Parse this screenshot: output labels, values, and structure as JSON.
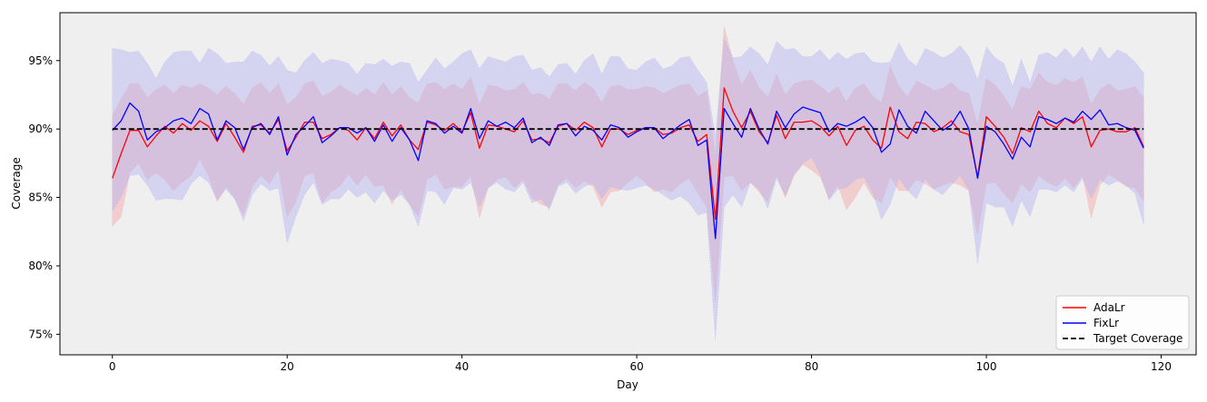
{
  "chart_data": {
    "type": "line",
    "xlabel": "Day",
    "ylabel": "Coverage",
    "xlim": [
      -6,
      124
    ],
    "ylim": [
      73.5,
      98.5
    ],
    "x_ticks": [
      0,
      20,
      40,
      60,
      80,
      100,
      120
    ],
    "y_ticks": [
      75,
      80,
      85,
      90,
      95
    ],
    "y_tick_labels": [
      "75%",
      "80%",
      "85%",
      "90%",
      "95%"
    ],
    "grid": false,
    "background": "#efefef",
    "legend_position": "bottom-right",
    "target_coverage": 90,
    "series": [
      {
        "name": "AdaLr",
        "color": "#ff0000",
        "band_color": "#f4a3a3",
        "values": [
          86.4,
          88.2,
          89.9,
          89.9,
          88.7,
          89.5,
          90.2,
          89.7,
          90.4,
          89.9,
          90.6,
          90.2,
          89.1,
          90.4,
          89.4,
          88.3,
          90.2,
          90.3,
          89.7,
          90.7,
          88.4,
          89.4,
          90.5,
          90.5,
          89.3,
          89.6,
          90.1,
          89.9,
          89.2,
          90.1,
          89.3,
          90.5,
          89.5,
          90.3,
          89.2,
          88.5,
          90.5,
          90.3,
          89.9,
          90.4,
          89.8,
          91.2,
          88.6,
          90.3,
          90.2,
          90.0,
          89.8,
          90.6,
          89.2,
          89.3,
          89.0,
          90.2,
          90.4,
          89.9,
          90.5,
          90.1,
          88.7,
          90.0,
          90.0,
          89.6,
          89.9,
          90.1,
          90.1,
          89.6,
          89.7,
          90.1,
          90.3,
          89.1,
          89.6,
          83.4,
          93.0,
          91.3,
          90.1,
          91.3,
          89.8,
          89.0,
          91.0,
          89.3,
          90.5,
          90.5,
          90.6,
          90.2,
          89.5,
          90.2,
          88.8,
          89.9,
          90.2,
          89.2,
          88.6,
          91.6,
          89.8,
          89.3,
          90.5,
          90.4,
          89.8,
          90.1,
          90.6,
          89.8,
          89.6,
          86.5,
          90.9,
          90.2,
          89.4,
          88.2,
          90.1,
          89.8,
          91.3,
          90.4,
          90.1,
          90.8,
          90.4,
          90.9,
          88.7,
          89.9,
          90.0,
          89.8,
          89.8,
          90.1,
          88.7
        ],
        "lower": [
          82.9,
          83.6,
          86.8,
          87.5,
          86.3,
          86.8,
          86.3,
          85.5,
          86.1,
          86.6,
          87.8,
          86.6,
          84.7,
          85.8,
          84.9,
          83.7,
          85.8,
          86.6,
          86.0,
          87.1,
          83.6,
          84.7,
          86.6,
          86.8,
          84.6,
          85.4,
          85.8,
          86.7,
          85.9,
          86.7,
          85.8,
          85.9,
          84.5,
          85.6,
          84.5,
          83.6,
          86.3,
          86.7,
          85.6,
          85.8,
          85.8,
          86.6,
          83.5,
          85.7,
          86.3,
          86.5,
          85.7,
          86.3,
          85.0,
          84.5,
          84.3,
          85.9,
          86.4,
          85.7,
          86.2,
          85.8,
          84.3,
          85.4,
          85.5,
          86.1,
          86.6,
          86.1,
          85.4,
          85.6,
          85.4,
          86.0,
          86.4,
          85.3,
          84.3,
          77.3,
          86.5,
          86.6,
          85.5,
          86.1,
          85.4,
          84.7,
          86.6,
          85.0,
          86.6,
          87.4,
          87.0,
          86.5,
          84.9,
          85.9,
          84.1,
          85.0,
          86.1,
          85.0,
          84.6,
          86.5,
          85.5,
          85.5,
          86.3,
          86.0,
          85.6,
          85.9,
          86.1,
          85.9,
          85.5,
          82.3,
          86.0,
          86.1,
          85.3,
          84.6,
          86.0,
          85.4,
          86.6,
          86.1,
          85.8,
          86.4,
          85.7,
          86.6,
          83.5,
          85.9,
          86.7,
          86.3,
          85.8,
          85.7,
          84.7
        ],
        "upper": [
          91.0,
          92.2,
          93.3,
          93.3,
          92.3,
          92.9,
          93.2,
          92.6,
          93.2,
          93.0,
          93.3,
          93.0,
          92.5,
          93.1,
          92.6,
          91.8,
          93.0,
          93.4,
          92.6,
          93.3,
          91.8,
          92.3,
          93.3,
          93.5,
          92.4,
          92.7,
          93.2,
          92.8,
          92.4,
          93.0,
          92.5,
          93.4,
          92.5,
          93.1,
          92.3,
          91.9,
          93.3,
          93.4,
          92.9,
          93.3,
          92.9,
          93.8,
          91.8,
          93.2,
          93.1,
          92.8,
          92.9,
          93.4,
          92.5,
          92.6,
          92.2,
          93.3,
          93.3,
          92.8,
          93.4,
          93.0,
          91.9,
          93.1,
          93.2,
          92.9,
          92.9,
          93.1,
          93.0,
          92.6,
          92.9,
          93.2,
          93.3,
          92.4,
          92.8,
          88.1,
          97.5,
          95.0,
          93.2,
          94.3,
          93.0,
          92.3,
          94.0,
          92.5,
          93.3,
          93.5,
          93.6,
          93.1,
          92.6,
          93.1,
          92.0,
          93.0,
          93.3,
          92.4,
          91.9,
          94.6,
          93.1,
          92.4,
          93.5,
          93.2,
          92.8,
          93.0,
          93.4,
          92.8,
          92.6,
          90.3,
          93.7,
          93.2,
          92.4,
          91.4,
          93.1,
          92.9,
          94.1,
          93.4,
          93.2,
          93.7,
          93.4,
          93.8,
          91.8,
          92.9,
          93.3,
          92.8,
          92.9,
          93.1,
          92.3
        ]
      },
      {
        "name": "FixLr",
        "color": "#0000ff",
        "band_color": "#b4b4f2",
        "values": [
          89.9,
          90.6,
          91.9,
          91.3,
          89.2,
          89.8,
          90.1,
          90.6,
          90.8,
          90.4,
          91.5,
          91.1,
          89.2,
          90.6,
          90.1,
          88.5,
          90.1,
          90.4,
          89.6,
          90.9,
          88.1,
          89.6,
          90.2,
          90.9,
          89.0,
          89.5,
          90.1,
          90.1,
          89.7,
          90.1,
          89.1,
          90.3,
          89.1,
          90.1,
          89.2,
          87.7,
          90.6,
          90.4,
          89.7,
          90.2,
          89.7,
          91.5,
          89.3,
          90.6,
          90.2,
          90.5,
          90.1,
          90.8,
          89.0,
          89.4,
          88.8,
          90.3,
          90.4,
          89.5,
          90.2,
          89.9,
          89.2,
          90.3,
          90.1,
          89.4,
          89.8,
          90.1,
          90.1,
          89.3,
          89.8,
          90.3,
          90.7,
          88.8,
          89.2,
          82.0,
          91.5,
          90.4,
          89.4,
          91.5,
          90.0,
          88.9,
          91.3,
          90.1,
          91.1,
          91.6,
          91.4,
          91.2,
          89.8,
          90.4,
          90.2,
          90.5,
          90.9,
          90.1,
          88.3,
          88.9,
          91.4,
          90.2,
          89.7,
          91.3,
          90.6,
          89.9,
          90.3,
          91.3,
          90.0,
          86.4,
          90.2,
          89.8,
          88.9,
          87.8,
          89.4,
          88.7,
          90.9,
          90.7,
          90.4,
          90.8,
          90.5,
          91.3,
          90.7,
          91.4,
          90.3,
          90.4,
          90.1,
          89.9,
          88.6
        ],
        "lower": [
          84.0,
          85.0,
          86.6,
          86.7,
          85.9,
          84.8,
          84.9,
          84.9,
          84.8,
          86.0,
          86.6,
          86.1,
          84.8,
          85.6,
          84.9,
          83.3,
          85.2,
          86.0,
          85.5,
          85.7,
          81.7,
          83.6,
          85.2,
          86.1,
          84.5,
          84.9,
          84.9,
          85.6,
          85.0,
          85.4,
          84.6,
          85.5,
          84.8,
          85.2,
          84.5,
          82.9,
          85.5,
          85.4,
          84.5,
          85.7,
          85.6,
          86.1,
          84.3,
          85.7,
          86.1,
          85.6,
          85.4,
          86.1,
          84.6,
          84.9,
          84.1,
          85.8,
          86.1,
          85.3,
          85.8,
          86.0,
          84.9,
          85.8,
          85.6,
          85.5,
          85.7,
          85.9,
          85.6,
          85.2,
          84.8,
          85.1,
          84.6,
          83.7,
          83.9,
          74.6,
          84.3,
          85.2,
          84.3,
          86.1,
          85.6,
          84.2,
          86.4,
          85.1,
          86.7,
          87.5,
          87.9,
          86.7,
          84.8,
          85.6,
          85.7,
          86.3,
          86.5,
          85.3,
          83.4,
          84.5,
          86.4,
          85.5,
          84.9,
          86.3,
          85.6,
          85.2,
          85.9,
          86.6,
          85.5,
          80.2,
          84.6,
          84.3,
          84.3,
          82.9,
          84.8,
          83.6,
          85.6,
          85.6,
          85.4,
          85.9,
          85.4,
          86.4,
          84.9,
          86.3,
          85.9,
          86.2,
          85.9,
          85.3,
          83.0
        ],
        "upper": [
          95.9,
          95.8,
          95.6,
          95.7,
          94.8,
          93.7,
          94.9,
          95.6,
          95.7,
          95.7,
          94.8,
          95.9,
          95.5,
          94.8,
          94.9,
          94.9,
          95.7,
          95.4,
          94.6,
          95.3,
          94.3,
          94.1,
          95.0,
          95.6,
          94.8,
          95.1,
          95.0,
          94.8,
          94.0,
          94.8,
          94.7,
          95.1,
          94.6,
          94.9,
          94.8,
          93.4,
          94.3,
          95.2,
          94.4,
          94.9,
          95.5,
          95.8,
          94.4,
          95.3,
          95.1,
          94.9,
          95.3,
          95.4,
          94.3,
          94.5,
          93.8,
          94.7,
          94.8,
          94.0,
          95.0,
          95.5,
          94.0,
          95.3,
          95.3,
          94.4,
          94.3,
          94.9,
          95.2,
          94.4,
          94.6,
          95.2,
          95.3,
          94.3,
          93.4,
          89.5,
          96.6,
          95.2,
          95.3,
          96.0,
          95.5,
          94.7,
          96.4,
          95.8,
          95.9,
          95.3,
          95.3,
          95.8,
          95.0,
          95.6,
          95.1,
          95.5,
          95.6,
          94.9,
          94.8,
          94.9,
          96.3,
          95.1,
          94.6,
          95.9,
          95.6,
          95.2,
          95.5,
          96.1,
          95.3,
          93.6,
          96.0,
          95.2,
          94.8,
          93.1,
          95.1,
          93.4,
          95.4,
          95.6,
          95.2,
          95.9,
          95.2,
          96.0,
          94.9,
          96.0,
          95.1,
          95.8,
          95.5,
          94.9,
          94.1
        ]
      },
      {
        "name": "Target Coverage",
        "color": "#000000",
        "dashed": true,
        "values": [
          90,
          90
        ]
      }
    ]
  }
}
